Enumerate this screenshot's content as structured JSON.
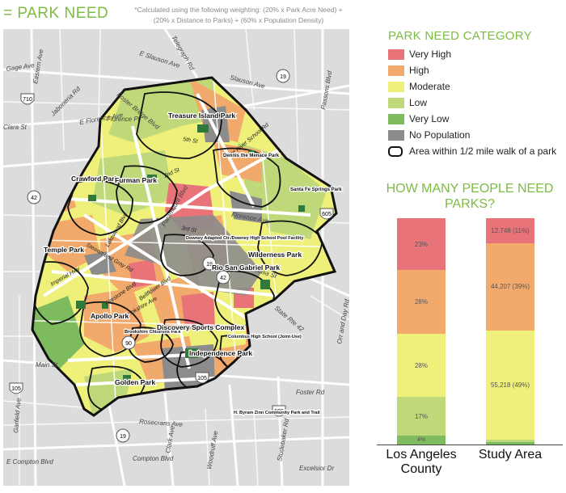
{
  "header": {
    "title": "= PARK NEED",
    "note_line1": "*Calculated using the following weighting: (20% x Park Acre Need) +",
    "note_line2": "(20% x Distance to Parks) + (60% x Population Density)"
  },
  "colors": {
    "very_high": "#e8747a",
    "high": "#f2aa6c",
    "moderate": "#eef07a",
    "low": "#bfd97a",
    "very_low": "#7dbb5e",
    "no_population": "#8c8c8c",
    "park": "#2f7a3a",
    "accent": "#7dbb42"
  },
  "legend": {
    "title": "PARK NEED CATEGORY",
    "items": [
      {
        "label": "Very High",
        "color": "#e8747a"
      },
      {
        "label": "High",
        "color": "#f2aa6c"
      },
      {
        "label": "Moderate",
        "color": "#eef07a"
      },
      {
        "label": "Low",
        "color": "#bfd97a"
      },
      {
        "label": "Very Low",
        "color": "#7dbb5e"
      },
      {
        "label": "No Population",
        "color": "#8c8c8c"
      }
    ],
    "walk_label": "Area within 1/2  mile walk of a park"
  },
  "map": {
    "streets": {
      "e_slauson": "E Slauson Ave",
      "slauson": "Slauson Ave",
      "gage": "Gage Ave",
      "telegraph": "Telegraph Rd",
      "eastern": "Eastern Ave",
      "foster_bridge": "Foster Bridge Blvd",
      "florence_pl": "Florence Pl",
      "e_florence": "E Florence Ave",
      "florence": "Florence Ave",
      "clara": "Clara St",
      "jaboneria": "Jaboneria Rd",
      "paramount": "Paramount Blvd",
      "cecilia": "Cecilia St",
      "passons": "Passons Blvd",
      "main": "Main St",
      "garfield": "Garfield Ave",
      "rosecrans": "Rosecrans Ave",
      "compton_blvd": "Compton Blvd",
      "e_compton": "E Compton Blvd",
      "clark": "Clark Ave",
      "woodruff": "Woodruff Ave",
      "studebaker": "Studebaker Rd",
      "excelsior": "Excelsior Dr",
      "orr_and_day": "Orr and Day Rd",
      "foster": "Foster Rd",
      "state_rte_42": "State Rte 42",
      "lakewood": "Lakewood Blvd",
      "stewart_gray": "Stewart and Gray Rd",
      "imperial": "Imperial Hwy",
      "bellflower": "Bellflower Blvd",
      "firestone": "Firestone Blvd",
      "brookshire": "Brookshire Ave",
      "old_river": "Old River School Rd",
      "fifth": "5th St",
      "third": "3rd St",
      "second": "2nd St"
    },
    "shields": {
      "i710": "710",
      "r19a": "19",
      "r19b": "19",
      "r42": "42",
      "r42b": "42",
      "r19c": "19",
      "i605a": "605",
      "i605b": "605",
      "r90": "90",
      "i105a": "105",
      "i105b": "105",
      "r19d": "19"
    },
    "parks": {
      "treasure": "Treasure Island Park",
      "dennis": "Dennis the Menace Park",
      "crawford": "Crawford Park",
      "furman": "Furman Park",
      "santa_fe": "Santa Fe Springs Park",
      "downey_adapted": "Downey Adapted Ctr./Downey High School Pool Facility",
      "wilderness": "Wilderness Park",
      "rio_san_gabriel": "Rio San Gabriel Park",
      "temple": "Temple Park",
      "apollo": "Apollo Park",
      "brookshire": "Brookshire Childrens Park",
      "discovery": "Discovery Sports Complex",
      "columbus": "Columbus High School (Joint-Use)",
      "independence": "Independence Park",
      "golden": "Golden Park",
      "zinn": "H. Byram Zinn Community Park and Trail"
    }
  },
  "population_chart": {
    "title": "HOW MANY PEOPLE NEED PARKS?"
  },
  "chart_data": {
    "type": "bar",
    "stacked": true,
    "title": "HOW MANY PEOPLE NEED PARKS?",
    "categories": [
      "Los Angeles County",
      "Study Area"
    ],
    "series": [
      {
        "name": "Very Low",
        "values": [
          4,
          1
        ],
        "labels": [
          "4%",
          ""
        ]
      },
      {
        "name": "Low",
        "values": [
          17,
          1
        ],
        "labels": [
          "17%",
          ""
        ]
      },
      {
        "name": "Moderate",
        "values": [
          28,
          49
        ],
        "labels": [
          "28%",
          "55,218 (49%)"
        ]
      },
      {
        "name": "High",
        "values": [
          28,
          39
        ],
        "labels": [
          "28%",
          "44,207 (39%)"
        ]
      },
      {
        "name": "Very High",
        "values": [
          23,
          11
        ],
        "labels": [
          "23%",
          "12,748 (11%)"
        ]
      }
    ],
    "ylim": [
      0,
      100
    ]
  }
}
